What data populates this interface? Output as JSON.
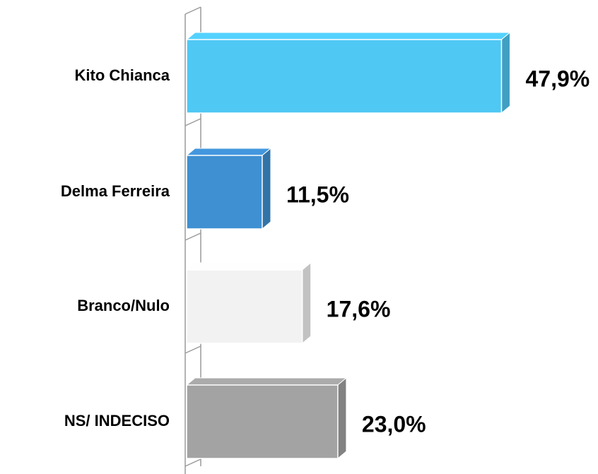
{
  "chart_data": {
    "type": "bar3d_horizontal",
    "categories": [
      "Kito Chianca",
      "Delma Ferreira",
      "Branco/Nulo",
      "NS/ INDECISO"
    ],
    "values": [
      47.9,
      11.5,
      17.6,
      23.0
    ],
    "value_labels": [
      "47,9%",
      "11,5%",
      "17,6%",
      "23,0%"
    ],
    "colors": [
      "#4fc8f4",
      "#3f90d2",
      "#f2f2f2",
      "#a3a3a3"
    ]
  }
}
